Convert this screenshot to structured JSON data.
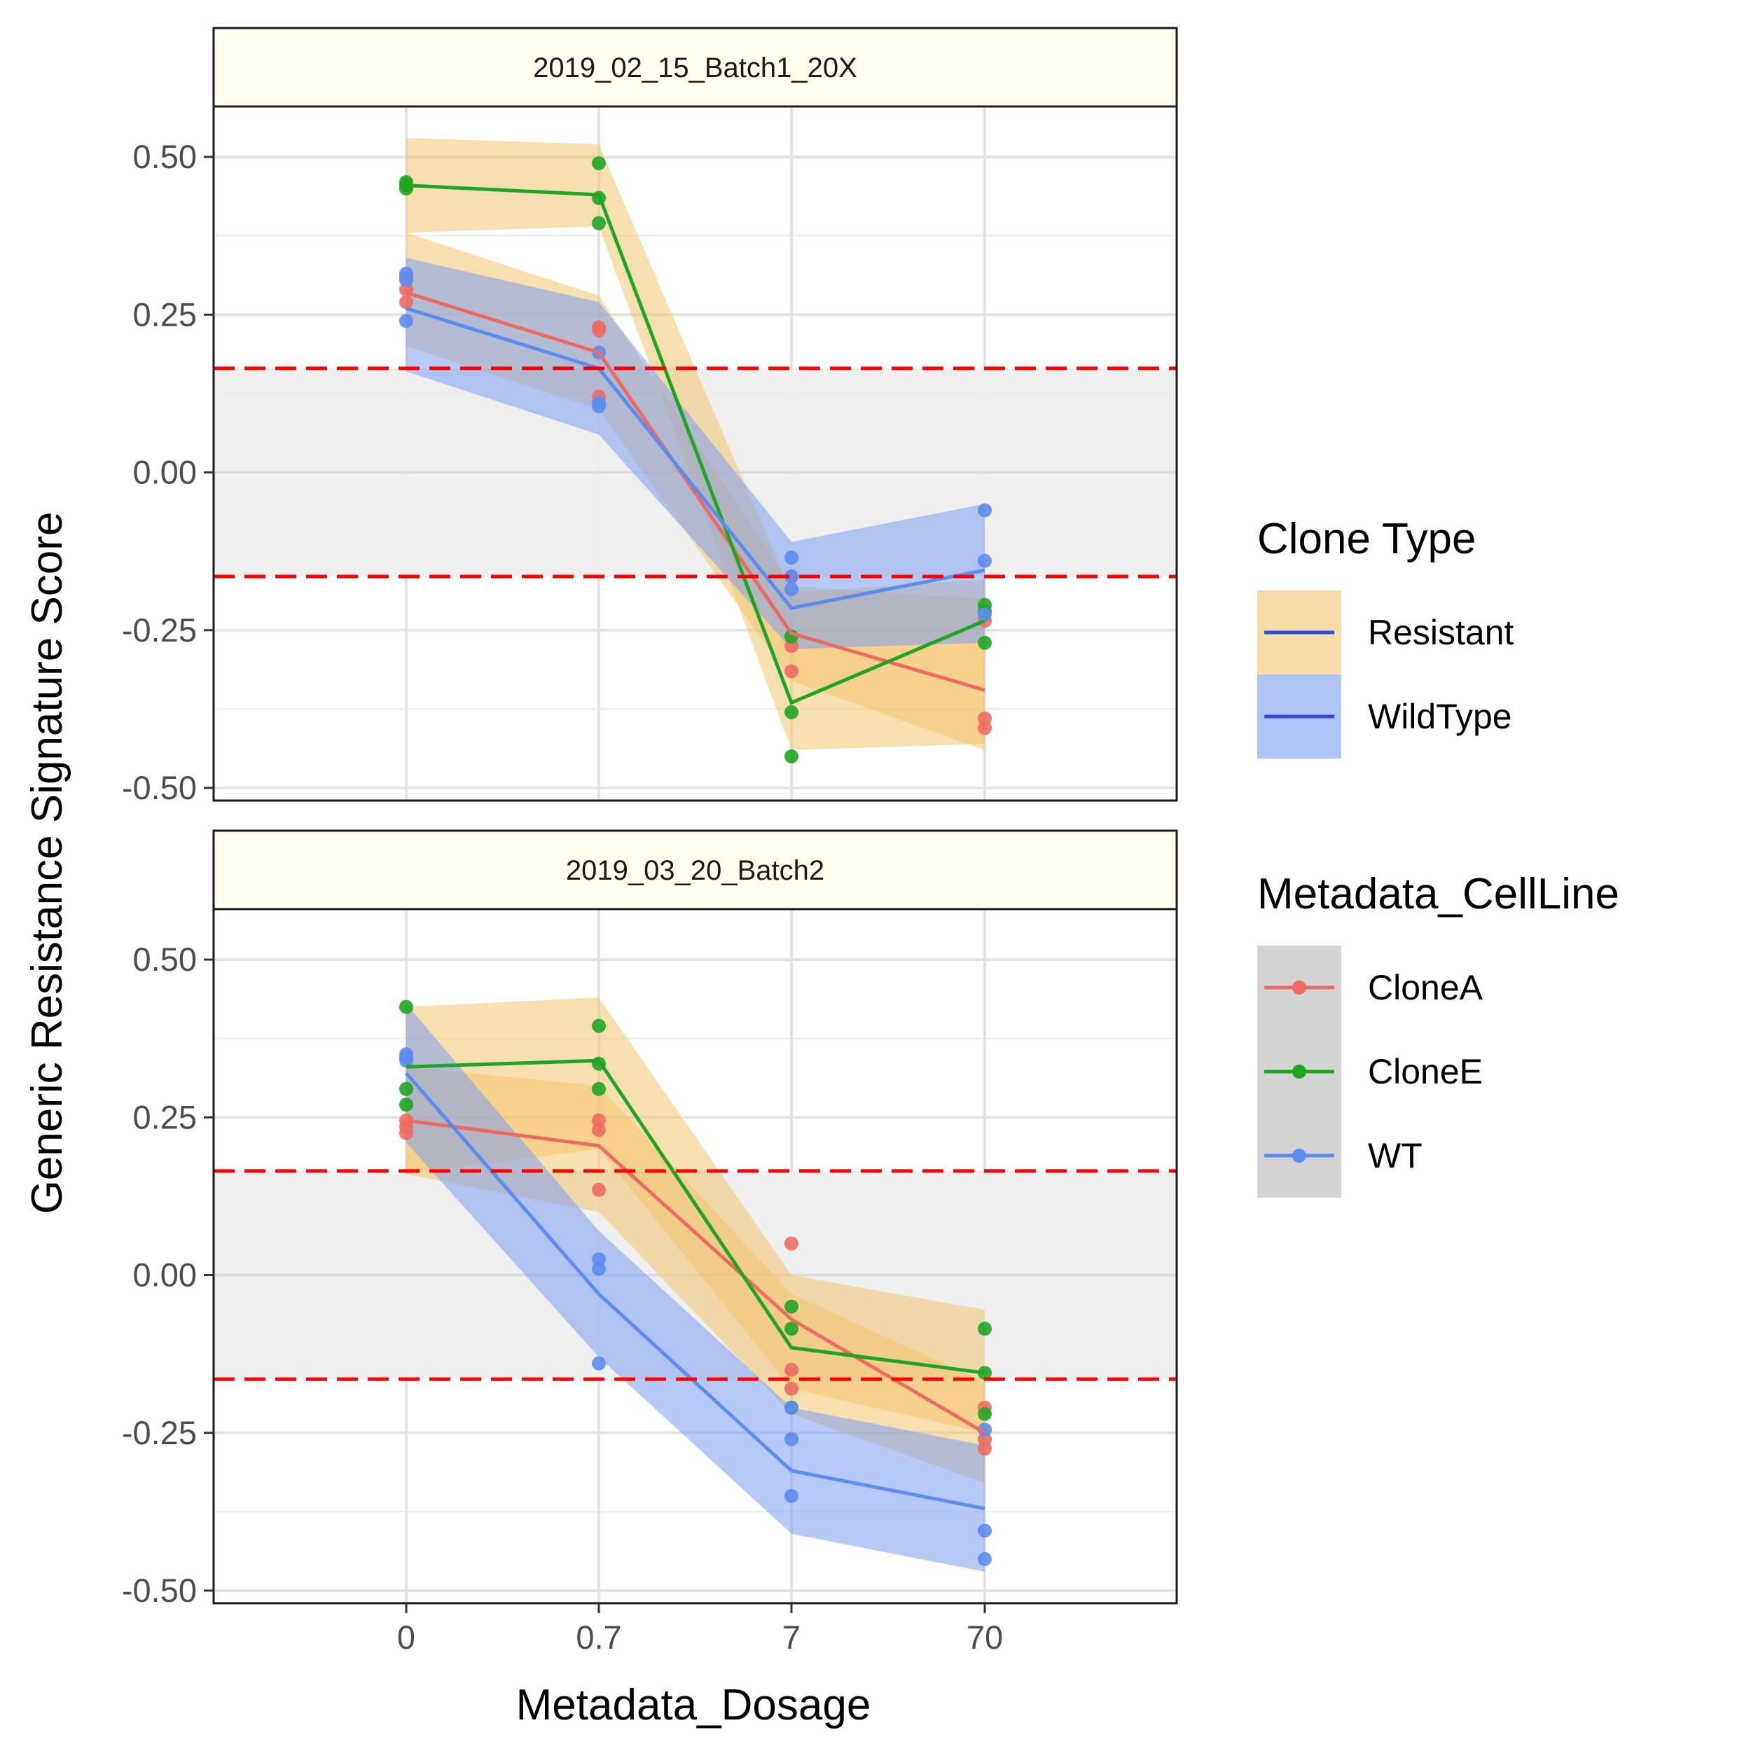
{
  "chart_data": {
    "type": "line",
    "xlabel": "Metadata_Dosage",
    "ylabel": "Generic Resistance Signature Score",
    "x_categories": [
      "0",
      "0.7",
      "7",
      "70"
    ],
    "y_ticks": [
      "0.50",
      "0.25",
      "0.00",
      "-0.25",
      "-0.50"
    ],
    "y_tick_values": [
      0.5,
      0.25,
      0.0,
      -0.25,
      -0.5
    ],
    "ylim": [
      -0.52,
      0.58
    ],
    "threshold_lines": [
      0.165,
      -0.165
    ],
    "threshold_color": "#ff0000",
    "threshold_band_color": "#eeeeee",
    "grid": true,
    "legend_position": "right",
    "colors": {
      "CloneA": "#ee6a60",
      "CloneE": "#1fa524",
      "WT": "#5b8cf0",
      "Resistant_fill": "#f3c46d",
      "WildType_fill": "#7c9ef0",
      "Resistant_line": "#2b4be3",
      "WildType_line": "#2b4be3"
    },
    "legends": [
      {
        "title": "Clone Type",
        "items": [
          {
            "label": "Resistant",
            "fill": "#f3c46d"
          },
          {
            "label": "WildType",
            "fill": "#7c9ef0"
          }
        ]
      },
      {
        "title": "Metadata_CellLine",
        "items": [
          {
            "label": "CloneA",
            "color": "#ee6a60"
          },
          {
            "label": "CloneE",
            "color": "#1fa524"
          },
          {
            "label": "WT",
            "color": "#5b8cf0"
          }
        ]
      }
    ],
    "panels": [
      {
        "title": "2019_02_15_Batch1_20X",
        "series": [
          {
            "name": "CloneA",
            "line": [
              0.285,
              0.19,
              -0.255,
              -0.345
            ],
            "points": [
              [
                0,
                0.31
              ],
              [
                0,
                0.29
              ],
              [
                0,
                0.27
              ],
              [
                1,
                0.23
              ],
              [
                1,
                0.225
              ],
              [
                1,
                0.12
              ],
              [
                2,
                -0.165
              ],
              [
                2,
                -0.275
              ],
              [
                2,
                -0.315
              ],
              [
                3,
                -0.235
              ],
              [
                3,
                -0.39
              ],
              [
                3,
                -0.405
              ]
            ]
          },
          {
            "name": "CloneE",
            "line": [
              0.455,
              0.44,
              -0.365,
              -0.235
            ],
            "points": [
              [
                0,
                0.46
              ],
              [
                0,
                0.455
              ],
              [
                0,
                0.45
              ],
              [
                1,
                0.49
              ],
              [
                1,
                0.435
              ],
              [
                1,
                0.395
              ],
              [
                2,
                -0.26
              ],
              [
                2,
                -0.38
              ],
              [
                2,
                -0.45
              ],
              [
                3,
                -0.21
              ],
              [
                3,
                -0.22
              ],
              [
                3,
                -0.27
              ]
            ]
          },
          {
            "name": "WT",
            "line": [
              0.26,
              0.165,
              -0.215,
              -0.155
            ],
            "points": [
              [
                0,
                0.315
              ],
              [
                0,
                0.305
              ],
              [
                0,
                0.24
              ],
              [
                1,
                0.19
              ],
              [
                1,
                0.11
              ],
              [
                1,
                0.105
              ],
              [
                2,
                -0.135
              ],
              [
                2,
                -0.165
              ],
              [
                2,
                -0.185
              ],
              [
                3,
                -0.06
              ],
              [
                3,
                -0.14
              ],
              [
                3,
                -0.225
              ]
            ]
          }
        ],
        "bands": [
          {
            "name": "Resistant",
            "upper": [
              0.53,
              0.52,
              -0.19,
              -0.17
            ],
            "lower": [
              0.38,
              0.39,
              -0.44,
              -0.43
            ]
          },
          {
            "name": "Resistant",
            "upper": [
              0.38,
              0.28,
              -0.18,
              -0.2
            ],
            "lower": [
              0.2,
              0.1,
              -0.33,
              -0.44
            ]
          },
          {
            "name": "WildType",
            "upper": [
              0.34,
              0.27,
              -0.11,
              -0.05
            ],
            "lower": [
              0.16,
              0.06,
              -0.28,
              -0.27
            ]
          }
        ]
      },
      {
        "title": "2019_03_20_Batch2",
        "series": [
          {
            "name": "CloneA",
            "line": [
              0.245,
              0.205,
              -0.07,
              -0.25
            ],
            "points": [
              [
                0,
                0.245
              ],
              [
                0,
                0.235
              ],
              [
                0,
                0.225
              ],
              [
                1,
                0.245
              ],
              [
                1,
                0.23
              ],
              [
                1,
                0.135
              ],
              [
                2,
                0.05
              ],
              [
                2,
                -0.15
              ],
              [
                2,
                -0.18
              ],
              [
                3,
                -0.21
              ],
              [
                3,
                -0.26
              ],
              [
                3,
                -0.275
              ]
            ]
          },
          {
            "name": "CloneE",
            "line": [
              0.33,
              0.34,
              -0.115,
              -0.155
            ],
            "points": [
              [
                0,
                0.425
              ],
              [
                0,
                0.295
              ],
              [
                0,
                0.27
              ],
              [
                1,
                0.395
              ],
              [
                1,
                0.335
              ],
              [
                1,
                0.295
              ],
              [
                2,
                -0.05
              ],
              [
                2,
                -0.085
              ],
              [
                2,
                -0.21
              ],
              [
                3,
                -0.085
              ],
              [
                3,
                -0.155
              ],
              [
                3,
                -0.22
              ]
            ]
          },
          {
            "name": "WT",
            "line": [
              0.32,
              -0.03,
              -0.31,
              -0.37
            ],
            "points": [
              [
                0,
                0.35
              ],
              [
                0,
                0.345
              ],
              [
                0,
                0.34
              ],
              [
                1,
                0.025
              ],
              [
                1,
                0.01
              ],
              [
                1,
                -0.14
              ],
              [
                2,
                -0.21
              ],
              [
                2,
                -0.26
              ],
              [
                2,
                -0.35
              ],
              [
                3,
                -0.245
              ],
              [
                3,
                -0.405
              ],
              [
                3,
                -0.45
              ]
            ]
          }
        ],
        "bands": [
          {
            "name": "Resistant",
            "upper": [
              0.425,
              0.44,
              0.0,
              -0.055
            ],
            "lower": [
              0.16,
              0.2,
              -0.18,
              -0.25
            ]
          },
          {
            "name": "Resistant",
            "upper": [
              0.33,
              0.3,
              -0.03,
              -0.17
            ],
            "lower": [
              0.16,
              0.1,
              -0.22,
              -0.33
            ]
          },
          {
            "name": "WildType",
            "upper": [
              0.43,
              0.07,
              -0.21,
              -0.27
            ],
            "lower": [
              0.21,
              -0.13,
              -0.41,
              -0.47
            ]
          }
        ]
      }
    ]
  }
}
